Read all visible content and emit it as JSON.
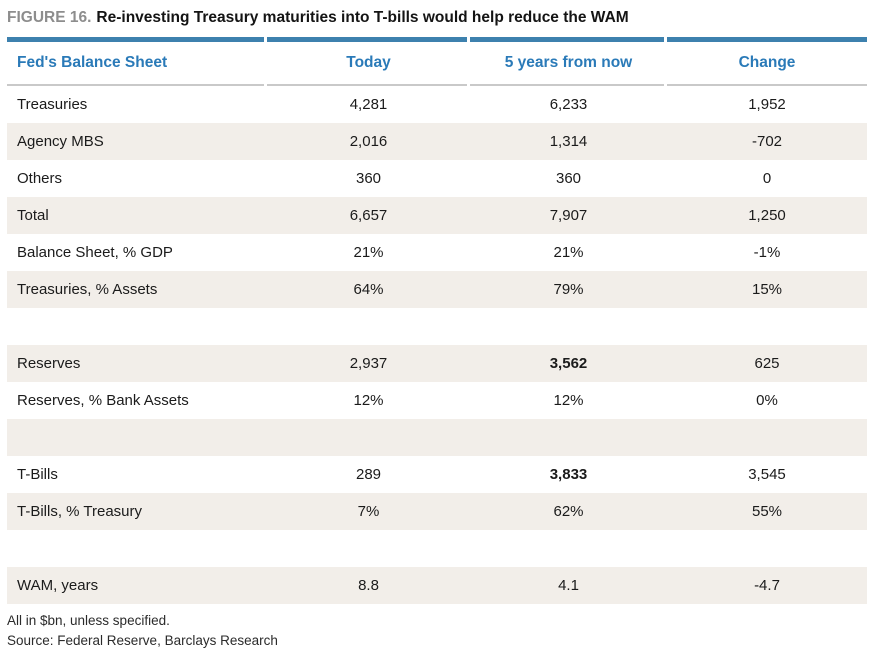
{
  "figure": {
    "label": "FIGURE 16.",
    "title": "Re-investing Treasury maturities into T-bills would help reduce the WAM"
  },
  "chart_data": {
    "type": "table",
    "title": "Re-investing Treasury maturities into T-bills would help reduce the WAM",
    "columns": [
      "Fed's Balance Sheet",
      "Today",
      "5 years from now",
      "Change"
    ],
    "rows": [
      {
        "label": "Treasuries",
        "today": "4,281",
        "future": "6,233",
        "change": "1,952"
      },
      {
        "label": "Agency MBS",
        "today": "2,016",
        "future": "1,314",
        "change": "-702"
      },
      {
        "label": "Others",
        "today": "360",
        "future": "360",
        "change": "0"
      },
      {
        "label": "Total",
        "today": "6,657",
        "future": "7,907",
        "change": "1,250"
      },
      {
        "label": "Balance Sheet, % GDP",
        "today": "21%",
        "future": "21%",
        "change": "-1%"
      },
      {
        "label": "Treasuries, % Assets",
        "today": "64%",
        "future": "79%",
        "change": "15%"
      },
      {
        "label": "",
        "today": "",
        "future": "",
        "change": ""
      },
      {
        "label": "Reserves",
        "today": "2,937",
        "future": "3,562",
        "change": "625"
      },
      {
        "label": "Reserves, % Bank Assets",
        "today": "12%",
        "future": "12%",
        "change": "0%"
      },
      {
        "label": "",
        "today": "",
        "future": "",
        "change": ""
      },
      {
        "label": "T-Bills",
        "today": "289",
        "future": "3,833",
        "change": "3,545"
      },
      {
        "label": "T-Bills, % Treasury",
        "today": "7%",
        "future": "62%",
        "change": "55%"
      },
      {
        "label": "",
        "today": "",
        "future": "",
        "change": ""
      },
      {
        "label": "WAM, years",
        "today": "8.8",
        "future": "4.1",
        "change": "-4.7"
      }
    ],
    "emphasized_values": [
      "3,562",
      "3,833"
    ],
    "notes": [
      "All in $bn, unless specified.",
      "Source: Federal Reserve, Barclays Research"
    ]
  },
  "footer": {
    "note": "All in $bn, unless specified.",
    "source": "Source: Federal Reserve, Barclays Research"
  },
  "colors": {
    "accent_blue": "#2a7ab8",
    "rule_blue": "#3d81ae",
    "rule_gray": "#c9c9c9",
    "stripe_beige": "#f2eee9",
    "figure_label_gray": "#8d8d8d",
    "text_black": "#1b1b1b"
  }
}
